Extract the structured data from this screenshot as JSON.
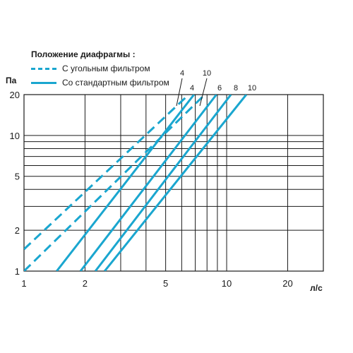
{
  "legend": {
    "title": "Положение диафрагмы :",
    "items": [
      {
        "label": "С угольным фильтром",
        "style": "dashed"
      },
      {
        "label": "Со стандартным фильтром",
        "style": "solid"
      }
    ]
  },
  "chart_data": {
    "type": "line",
    "xscale": "log",
    "yscale": "log",
    "xlim": [
      1,
      30
    ],
    "ylim": [
      1,
      20
    ],
    "xlabel": "л/с",
    "ylabel": "Па",
    "xticks": [
      1,
      2,
      5,
      10,
      20
    ],
    "yticks": [
      1,
      2,
      5,
      10,
      20
    ],
    "grid": true,
    "line_color": "#1aa6cf",
    "series": [
      {
        "name": "4",
        "style": "dashed",
        "points": [
          [
            1,
            1.45
          ],
          [
            6.5,
            20
          ]
        ]
      },
      {
        "name": "10",
        "style": "dashed",
        "points": [
          [
            1,
            1.0
          ],
          [
            7.8,
            20
          ]
        ]
      },
      {
        "name": "4",
        "style": "solid",
        "points": [
          [
            1.45,
            1.0
          ],
          [
            6.9,
            20
          ]
        ]
      },
      {
        "name": "6",
        "style": "solid",
        "points": [
          [
            1.9,
            1.0
          ],
          [
            8.9,
            20
          ]
        ]
      },
      {
        "name": "8",
        "style": "solid",
        "points": [
          [
            2.25,
            1.0
          ],
          [
            10.5,
            20
          ]
        ]
      },
      {
        "name": "10",
        "style": "solid",
        "points": [
          [
            2.5,
            1.0
          ],
          [
            12.5,
            20
          ]
        ]
      }
    ]
  }
}
